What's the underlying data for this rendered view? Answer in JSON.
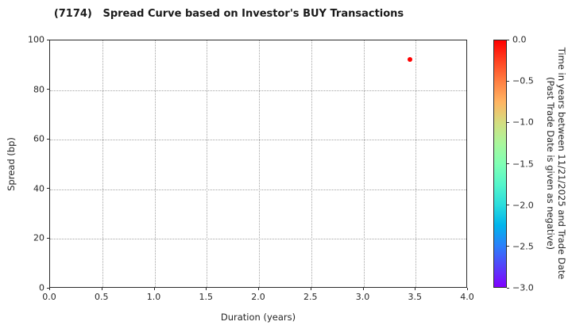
{
  "title": "(7174)   Spread Curve based on Investor's BUY Transactions",
  "chart_data": {
    "type": "scatter",
    "title": "(7174)   Spread Curve based on Investor's BUY Transactions",
    "xlabel": "Duration (years)",
    "ylabel": "Spread (bp)",
    "xlim": [
      0.0,
      4.0
    ],
    "ylim": [
      0,
      100
    ],
    "x_tick_labels": [
      "0.0",
      "0.5",
      "1.0",
      "1.5",
      "2.0",
      "2.5",
      "3.0",
      "3.5",
      "4.0"
    ],
    "y_tick_labels_bottom_up": [
      "0",
      "20",
      "40",
      "60",
      "80",
      "100"
    ],
    "grid": "dotted gray, both directions",
    "legend_position": "none",
    "points": [
      {
        "x": 3.45,
        "y": 92,
        "color": "#ff0000",
        "colorbar_value": 0.0
      }
    ],
    "colorbar": {
      "label_line1": "Time in years between 11/21/2025 and Trade Date",
      "label_line2": "(Past Trade Date is given as negative)",
      "tick_labels_top_down": [
        "0.0",
        "−0.5",
        "−1.0",
        "−1.5",
        "−2.0",
        "−2.5",
        "−3.0"
      ],
      "value_range_top_to_bottom": [
        0.0,
        -3.0
      ],
      "colormap": "rainbow",
      "gradient_stops_top_to_bottom": [
        "#ff0000",
        "#ff4221",
        "#ff8042",
        "#ffb462",
        "#d4dd80",
        "#aaf69b",
        "#80ffb4",
        "#55f6ca",
        "#2bdddd",
        "#00b4ec",
        "#2b80fa",
        "#5542fa",
        "#8000ff"
      ]
    }
  }
}
